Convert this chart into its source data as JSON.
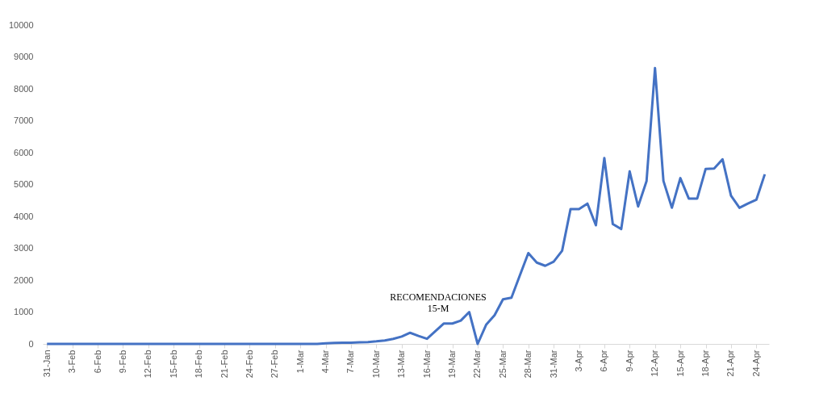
{
  "chart_data": {
    "type": "line",
    "categories": [
      "31-Jan",
      null,
      null,
      "3-Feb",
      null,
      null,
      "6-Feb",
      null,
      null,
      "9-Feb",
      null,
      null,
      "12-Feb",
      null,
      null,
      "15-Feb",
      null,
      null,
      "18-Feb",
      null,
      null,
      "21-Feb",
      null,
      null,
      "24-Feb",
      null,
      null,
      "27-Feb",
      null,
      null,
      "1-Mar",
      null,
      null,
      "4-Mar",
      null,
      null,
      "7-Mar",
      null,
      null,
      "10-Mar",
      null,
      null,
      "13-Mar",
      null,
      null,
      "16-Mar",
      null,
      null,
      "19-Mar",
      null,
      null,
      "22-Mar",
      null,
      null,
      "25-Mar",
      null,
      null,
      "28-Mar",
      null,
      null,
      "31-Mar",
      null,
      null,
      "3-Apr",
      null,
      null,
      "6-Apr",
      null,
      null,
      "9-Apr",
      null,
      null,
      "12-Apr",
      null,
      null,
      "15-Apr",
      null,
      null,
      "18-Apr",
      null,
      null,
      "21-Apr",
      null,
      null,
      "24-Apr",
      null
    ],
    "series": [
      {
        "color": "#4472c4",
        "values": [
          0,
          0,
          0,
          0,
          0,
          0,
          0,
          0,
          0,
          0,
          0,
          0,
          0,
          0,
          0,
          0,
          0,
          0,
          0,
          0,
          0,
          0,
          0,
          0,
          0,
          0,
          0,
          0,
          0,
          0,
          0,
          0,
          0,
          20,
          30,
          40,
          40,
          50,
          60,
          80,
          110,
          160,
          230,
          350,
          250,
          160,
          400,
          640,
          640,
          730,
          1000,
          0,
          600,
          900,
          1400,
          1450,
          2150,
          2850,
          2550,
          2450,
          2580,
          2920,
          4230,
          4230,
          4400,
          3720,
          5830,
          3760,
          3600,
          5410,
          4310,
          5110,
          8650,
          5110,
          4270,
          5200,
          4560,
          4560,
          5490,
          5500,
          5790,
          4650,
          4270,
          4400,
          4520,
          5320
        ]
      }
    ],
    "ylim": [
      0,
      10000
    ],
    "yticks": [
      0,
      1000,
      2000,
      3000,
      4000,
      5000,
      6000,
      7000,
      8000,
      9000,
      10000
    ],
    "annotations": [
      "RECOMENDACIONES\n15-M"
    ],
    "grid": false,
    "legend": false,
    "marker": "none",
    "line_style": "solid"
  }
}
